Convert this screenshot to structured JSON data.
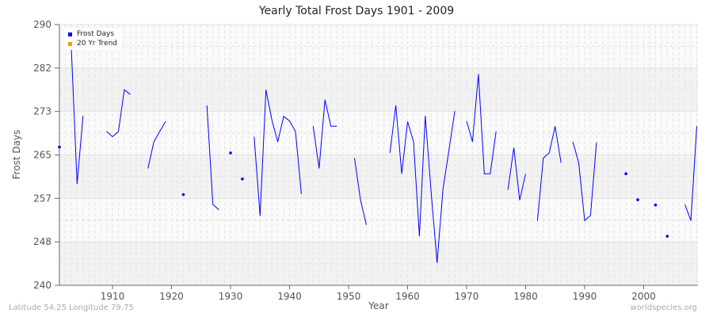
{
  "chart_data": {
    "type": "line",
    "title": "Yearly Total Frost Days 1901 - 2009",
    "xlabel": "Year",
    "ylabel": "Frost Days",
    "xlim": [
      1901,
      2009
    ],
    "ylim": [
      240,
      290
    ],
    "x_ticks": [
      1910,
      1920,
      1930,
      1940,
      1950,
      1960,
      1970,
      1980,
      1990,
      2000
    ],
    "y_ticks": [
      240,
      248,
      257,
      265,
      273,
      282,
      290
    ],
    "grid": true,
    "legend_position": "top-left",
    "legend": [
      {
        "label": "Frost Days",
        "color": "#0000ff"
      },
      {
        "label": "20 Yr Trend",
        "color": "#ff9900"
      }
    ],
    "series": [
      {
        "name": "Frost Days",
        "color": "#0000ff",
        "x": [
          1901,
          1902,
          1903,
          1904,
          1905,
          1906,
          1907,
          1908,
          1909,
          1910,
          1911,
          1912,
          1913,
          1914,
          1915,
          1916,
          1917,
          1918,
          1919,
          1920,
          1921,
          1922,
          1923,
          1924,
          1925,
          1926,
          1927,
          1928,
          1929,
          1930,
          1931,
          1932,
          1933,
          1934,
          1935,
          1936,
          1937,
          1938,
          1939,
          1940,
          1941,
          1942,
          1943,
          1944,
          1945,
          1946,
          1947,
          1948,
          1949,
          1950,
          1951,
          1952,
          1953,
          1954,
          1955,
          1956,
          1957,
          1958,
          1959,
          1960,
          1961,
          1962,
          1963,
          1964,
          1965,
          1966,
          1967,
          1968,
          1969,
          1970,
          1971,
          1972,
          1973,
          1974,
          1975,
          1976,
          1977,
          1978,
          1979,
          1980,
          1981,
          1982,
          1983,
          1984,
          1985,
          1986,
          1987,
          1988,
          1989,
          1990,
          1991,
          1992,
          1993,
          1994,
          1995,
          1996,
          1997,
          1998,
          1999,
          2000,
          2001,
          2002,
          2003,
          2004,
          2005,
          2006,
          2007,
          2008,
          2009
        ],
        "values": [
          266.5,
          null,
          286,
          259.4,
          272.5,
          null,
          null,
          null,
          269.5,
          268.5,
          269.5,
          277.5,
          276.6,
          null,
          null,
          262.4,
          267.5,
          269.5,
          271.4,
          null,
          null,
          257.4,
          null,
          null,
          null,
          274.5,
          255.5,
          254.5,
          null,
          265.4,
          null,
          260.4,
          null,
          268.5,
          253.3,
          277.5,
          271.7,
          267.5,
          272.4,
          271.5,
          269.5,
          257.5,
          null,
          270.5,
          262.4,
          275.6,
          270.5,
          270.5,
          null,
          null,
          264.4,
          256.5,
          251.6,
          null,
          null,
          null,
          265.4,
          274.5,
          261.4,
          271.4,
          267.5,
          249.4,
          272.5,
          257.7,
          244.3,
          258.5,
          265.8,
          273.4,
          null,
          271.5,
          267.5,
          280.5,
          261.4,
          261.4,
          269.5,
          null,
          258.3,
          266.4,
          256.3,
          261.4,
          null,
          252.4,
          264.4,
          265.4,
          270.5,
          263.5,
          null,
          267.5,
          263.5,
          252.4,
          253.4,
          267.4,
          null,
          null,
          null,
          null,
          261.4,
          null,
          256.4,
          null,
          null,
          255.4,
          null,
          249.4,
          null,
          null,
          255.5,
          252.4,
          270.5
        ]
      },
      {
        "name": "20 Yr Trend",
        "color": "#ff9900",
        "x": [],
        "values": []
      }
    ]
  },
  "footer": {
    "left": "Latitude 54.25 Longitude 79.75",
    "right": "worldspecies.org"
  },
  "colors": {
    "band_light": "#fafafa",
    "band_dark": "#f2f2f2",
    "grid": "#e2e2e2",
    "axis": "#666666",
    "tick_label": "#555555"
  }
}
